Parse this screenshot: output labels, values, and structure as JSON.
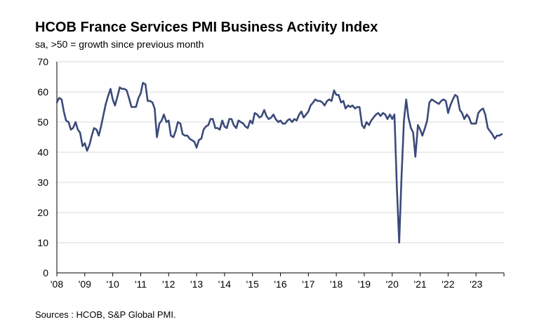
{
  "header": {
    "title": "HCOB France Services PMI Business Activity Index",
    "subtitle": "sa, >50 = growth since previous month"
  },
  "footer": {
    "source": "Sources : HCOB, S&P Global PMI."
  },
  "chart_data": {
    "type": "line",
    "title": "HCOB France Services PMI Business Activity Index",
    "subtitle": "sa, >50 = growth since previous month",
    "ylim": [
      0,
      70
    ],
    "yticks": [
      0,
      10,
      20,
      30,
      40,
      50,
      60,
      70
    ],
    "xlim": [
      2008.0,
      2024.0
    ],
    "xtick_labels": [
      "'08",
      "'09",
      "'10",
      "'11",
      "'12",
      "'13",
      "'14",
      "'15",
      "'16",
      "'17",
      "'18",
      "'19",
      "'20",
      "'21",
      "'22",
      "'23"
    ],
    "grid": "horizontal",
    "line_color": "#3b4a7a",
    "series": [
      {
        "values": [
          [
            2008.0,
            56.5
          ],
          [
            2008.08,
            58.0
          ],
          [
            2008.17,
            57.5
          ],
          [
            2008.25,
            53.5
          ],
          [
            2008.33,
            50.5
          ],
          [
            2008.42,
            50.0
          ],
          [
            2008.5,
            47.5
          ],
          [
            2008.58,
            48.0
          ],
          [
            2008.67,
            50.0
          ],
          [
            2008.75,
            47.5
          ],
          [
            2008.83,
            46.5
          ],
          [
            2008.92,
            42.0
          ],
          [
            2009.0,
            43.0
          ],
          [
            2009.08,
            40.5
          ],
          [
            2009.17,
            42.5
          ],
          [
            2009.25,
            45.5
          ],
          [
            2009.33,
            48.0
          ],
          [
            2009.42,
            47.5
          ],
          [
            2009.5,
            45.5
          ],
          [
            2009.58,
            48.5
          ],
          [
            2009.67,
            52.5
          ],
          [
            2009.75,
            56.0
          ],
          [
            2009.83,
            58.5
          ],
          [
            2009.92,
            61.0
          ],
          [
            2010.0,
            57.5
          ],
          [
            2010.08,
            55.5
          ],
          [
            2010.17,
            58.5
          ],
          [
            2010.25,
            61.5
          ],
          [
            2010.33,
            61.0
          ],
          [
            2010.42,
            61.0
          ],
          [
            2010.5,
            60.5
          ],
          [
            2010.58,
            58.0
          ],
          [
            2010.67,
            55.0
          ],
          [
            2010.75,
            55.0
          ],
          [
            2010.83,
            55.0
          ],
          [
            2010.92,
            58.0
          ],
          [
            2011.0,
            59.5
          ],
          [
            2011.08,
            63.0
          ],
          [
            2011.17,
            62.5
          ],
          [
            2011.25,
            57.0
          ],
          [
            2011.33,
            57.0
          ],
          [
            2011.42,
            56.5
          ],
          [
            2011.5,
            54.5
          ],
          [
            2011.58,
            45.0
          ],
          [
            2011.67,
            49.5
          ],
          [
            2011.75,
            50.5
          ],
          [
            2011.83,
            52.5
          ],
          [
            2011.92,
            50.0
          ],
          [
            2012.0,
            50.5
          ],
          [
            2012.08,
            45.5
          ],
          [
            2012.17,
            45.0
          ],
          [
            2012.25,
            47.0
          ],
          [
            2012.33,
            50.0
          ],
          [
            2012.42,
            49.5
          ],
          [
            2012.5,
            46.0
          ],
          [
            2012.58,
            45.5
          ],
          [
            2012.67,
            45.5
          ],
          [
            2012.75,
            44.5
          ],
          [
            2012.83,
            44.0
          ],
          [
            2012.92,
            43.5
          ],
          [
            2013.0,
            41.5
          ],
          [
            2013.08,
            44.0
          ],
          [
            2013.17,
            44.5
          ],
          [
            2013.25,
            47.5
          ],
          [
            2013.33,
            48.5
          ],
          [
            2013.42,
            49.0
          ],
          [
            2013.5,
            51.0
          ],
          [
            2013.58,
            51.0
          ],
          [
            2013.67,
            48.0
          ],
          [
            2013.75,
            48.0
          ],
          [
            2013.83,
            47.5
          ],
          [
            2013.92,
            50.5
          ],
          [
            2014.0,
            48.5
          ],
          [
            2014.08,
            48.0
          ],
          [
            2014.17,
            51.0
          ],
          [
            2014.25,
            51.0
          ],
          [
            2014.33,
            49.0
          ],
          [
            2014.42,
            48.0
          ],
          [
            2014.5,
            50.5
          ],
          [
            2014.58,
            50.0
          ],
          [
            2014.67,
            49.5
          ],
          [
            2014.75,
            48.5
          ],
          [
            2014.83,
            48.0
          ],
          [
            2014.92,
            50.5
          ],
          [
            2015.0,
            49.5
          ],
          [
            2015.08,
            53.0
          ],
          [
            2015.17,
            52.5
          ],
          [
            2015.25,
            51.5
          ],
          [
            2015.33,
            52.0
          ],
          [
            2015.42,
            54.0
          ],
          [
            2015.5,
            52.0
          ],
          [
            2015.58,
            51.0
          ],
          [
            2015.67,
            51.5
          ],
          [
            2015.75,
            52.5
          ],
          [
            2015.83,
            51.0
          ],
          [
            2015.92,
            50.0
          ],
          [
            2016.0,
            50.5
          ],
          [
            2016.08,
            49.5
          ],
          [
            2016.17,
            49.5
          ],
          [
            2016.25,
            50.5
          ],
          [
            2016.33,
            51.0
          ],
          [
            2016.42,
            50.0
          ],
          [
            2016.5,
            51.0
          ],
          [
            2016.58,
            50.5
          ],
          [
            2016.67,
            52.5
          ],
          [
            2016.75,
            53.5
          ],
          [
            2016.83,
            51.5
          ],
          [
            2016.92,
            52.5
          ],
          [
            2017.0,
            53.5
          ],
          [
            2017.08,
            55.5
          ],
          [
            2017.17,
            56.5
          ],
          [
            2017.25,
            57.5
          ],
          [
            2017.33,
            57.0
          ],
          [
            2017.42,
            57.0
          ],
          [
            2017.5,
            56.5
          ],
          [
            2017.58,
            55.5
          ],
          [
            2017.67,
            57.0
          ],
          [
            2017.75,
            57.5
          ],
          [
            2017.83,
            57.0
          ],
          [
            2017.92,
            60.5
          ],
          [
            2018.0,
            59.0
          ],
          [
            2018.08,
            59.0
          ],
          [
            2018.17,
            56.5
          ],
          [
            2018.25,
            57.0
          ],
          [
            2018.33,
            54.5
          ],
          [
            2018.42,
            55.5
          ],
          [
            2018.5,
            55.0
          ],
          [
            2018.58,
            55.5
          ],
          [
            2018.67,
            54.5
          ],
          [
            2018.75,
            55.0
          ],
          [
            2018.83,
            55.0
          ],
          [
            2018.92,
            49.0
          ],
          [
            2019.0,
            48.0
          ],
          [
            2019.08,
            50.0
          ],
          [
            2019.17,
            49.0
          ],
          [
            2019.25,
            50.5
          ],
          [
            2019.33,
            51.5
          ],
          [
            2019.42,
            52.5
          ],
          [
            2019.5,
            53.0
          ],
          [
            2019.58,
            52.0
          ],
          [
            2019.67,
            53.0
          ],
          [
            2019.75,
            52.5
          ],
          [
            2019.83,
            51.0
          ],
          [
            2019.92,
            52.5
          ],
          [
            2020.0,
            51.0
          ],
          [
            2020.08,
            52.5
          ],
          [
            2020.17,
            27.5
          ],
          [
            2020.25,
            10.0
          ],
          [
            2020.33,
            31.0
          ],
          [
            2020.42,
            50.5
          ],
          [
            2020.5,
            57.5
          ],
          [
            2020.58,
            51.5
          ],
          [
            2020.67,
            48.0
          ],
          [
            2020.75,
            46.5
          ],
          [
            2020.83,
            38.5
          ],
          [
            2020.92,
            49.0
          ],
          [
            2021.0,
            47.5
          ],
          [
            2021.08,
            45.5
          ],
          [
            2021.17,
            48.0
          ],
          [
            2021.25,
            50.5
          ],
          [
            2021.33,
            56.5
          ],
          [
            2021.42,
            57.5
          ],
          [
            2021.5,
            57.0
          ],
          [
            2021.58,
            56.5
          ],
          [
            2021.67,
            56.0
          ],
          [
            2021.75,
            57.0
          ],
          [
            2021.83,
            57.5
          ],
          [
            2021.92,
            57.0
          ],
          [
            2022.0,
            53.0
          ],
          [
            2022.08,
            55.5
          ],
          [
            2022.17,
            57.5
          ],
          [
            2022.25,
            59.0
          ],
          [
            2022.33,
            58.5
          ],
          [
            2022.42,
            54.0
          ],
          [
            2022.5,
            53.0
          ],
          [
            2022.58,
            51.0
          ],
          [
            2022.67,
            52.5
          ],
          [
            2022.75,
            51.5
          ],
          [
            2022.83,
            49.5
          ],
          [
            2022.92,
            49.5
          ],
          [
            2023.0,
            49.5
          ],
          [
            2023.08,
            53.0
          ],
          [
            2023.17,
            54.0
          ],
          [
            2023.25,
            54.5
          ],
          [
            2023.33,
            52.5
          ],
          [
            2023.42,
            48.0
          ],
          [
            2023.5,
            47.0
          ],
          [
            2023.58,
            46.0
          ],
          [
            2023.67,
            44.5
          ],
          [
            2023.75,
            45.5
          ],
          [
            2023.83,
            45.5
          ],
          [
            2023.92,
            46.0
          ]
        ]
      }
    ]
  }
}
